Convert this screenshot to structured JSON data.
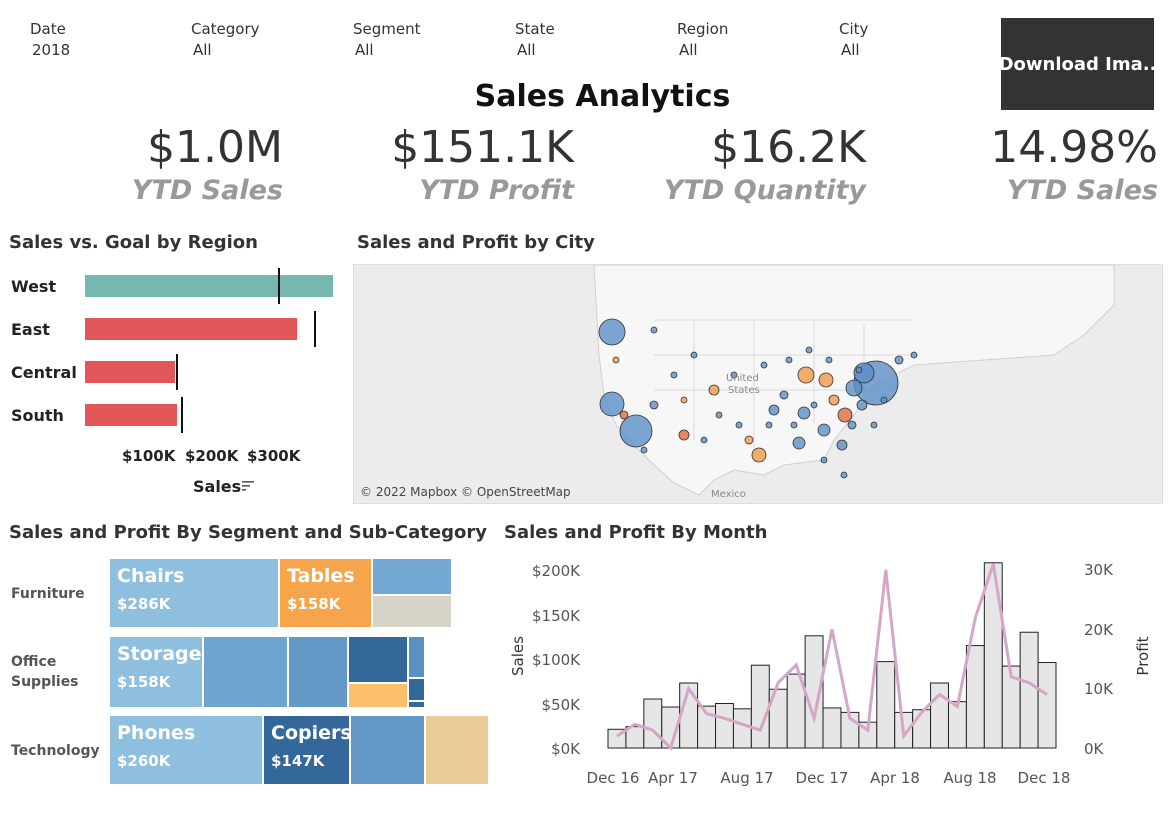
{
  "filters": [
    {
      "label": "Date",
      "value": "2018"
    },
    {
      "label": "Category",
      "value": "All"
    },
    {
      "label": "Segment",
      "value": "All"
    },
    {
      "label": "State",
      "value": "All"
    },
    {
      "label": "Region",
      "value": "All"
    },
    {
      "label": "City",
      "value": "All"
    }
  ],
  "download_button": "Download Ima..",
  "title": "Sales Analytics",
  "kpis": [
    {
      "value": "$1.0M",
      "label": "YTD Sales"
    },
    {
      "value": "$151.1K",
      "label": "YTD Profit"
    },
    {
      "value": "$16.2K",
      "label": "YTD Quantity"
    },
    {
      "value": "14.98%",
      "label": "YTD Sales"
    }
  ],
  "region_chart": {
    "title": "Sales vs. Goal by Region",
    "ticks": [
      "$100K",
      "$200K",
      "$300K"
    ],
    "x_title": "Sales",
    "sort_icon": "sort-descending-icon",
    "colors": {
      "above_goal": "#76b7b2",
      "below_goal": "#e15759"
    }
  },
  "map": {
    "title": "Sales and Profit by City",
    "attribution": "© 2022 Mapbox © OpenStreetMap",
    "labels": [
      "United",
      "States",
      "Mexico"
    ]
  },
  "treemap": {
    "title": "Sales and Profit By Segment and Sub-Category",
    "segments": [
      "Furniture",
      "Office Supplies",
      "Technology"
    ],
    "tiles": [
      {
        "name": "Chairs",
        "value": "$286K"
      },
      {
        "name": "Tables",
        "value": "$158K"
      },
      {
        "name": "Storage",
        "value": "$158K"
      },
      {
        "name": "Phones",
        "value": "$260K"
      },
      {
        "name": "Copiers",
        "value": "$147K"
      }
    ]
  },
  "month_chart": {
    "title": "Sales and Profit By Month",
    "y_left_label": "Sales",
    "y_right_label": "Profit",
    "y_left_ticks": [
      "$0K",
      "$50K",
      "$100K",
      "$150K",
      "$200K"
    ],
    "y_right_ticks": [
      "0K",
      "10K",
      "20K",
      "30K"
    ],
    "x_ticks": [
      "Dec 16",
      "Apr 17",
      "Aug 17",
      "Dec 17",
      "Apr 18",
      "Aug 18",
      "Dec 18"
    ]
  },
  "chart_data": [
    {
      "type": "bar",
      "title": "Sales vs. Goal by Region",
      "xlabel": "Sales",
      "categories": [
        "West",
        "East",
        "Central",
        "South"
      ],
      "series": [
        {
          "name": "Sales",
          "values": [
            400000,
            342000,
            145000,
            148000
          ]
        },
        {
          "name": "Goal",
          "values": [
            311000,
            369000,
            146000,
            155000
          ]
        }
      ],
      "xlim": [
        0,
        400000
      ]
    },
    {
      "type": "bar",
      "title": "Sales and Profit By Month",
      "x": [
        "Dec 16",
        "Jan 17",
        "Feb 17",
        "Mar 17",
        "Apr 17",
        "May 17",
        "Jun 17",
        "Jul 17",
        "Aug 17",
        "Sep 17",
        "Oct 17",
        "Nov 17",
        "Dec 17",
        "Jan 18",
        "Feb 18",
        "Mar 18",
        "Apr 18",
        "May 18",
        "Jun 18",
        "Jul 18",
        "Aug 18",
        "Sep 18",
        "Oct 18",
        "Nov 18",
        "Dec 18"
      ],
      "series": [
        {
          "name": "Sales",
          "values": [
            21000,
            24000,
            55000,
            46000,
            73000,
            47000,
            50000,
            44000,
            93000,
            66000,
            83000,
            126000,
            45000,
            40000,
            29000,
            97000,
            40000,
            43000,
            73000,
            52000,
            115000,
            208000,
            92000,
            130000,
            96000
          ]
        },
        {
          "name": "Profit",
          "values": [
            2000,
            4000,
            3000,
            0,
            10000,
            5800,
            5000,
            4000,
            3000,
            11000,
            14000,
            5000,
            20000,
            5000,
            3000,
            30000,
            2000,
            6000,
            9000,
            7000,
            22000,
            31000,
            12000,
            11000,
            9000
          ]
        }
      ],
      "ylim": [
        0,
        210000
      ],
      "y2lim": [
        0,
        31500
      ]
    }
  ]
}
